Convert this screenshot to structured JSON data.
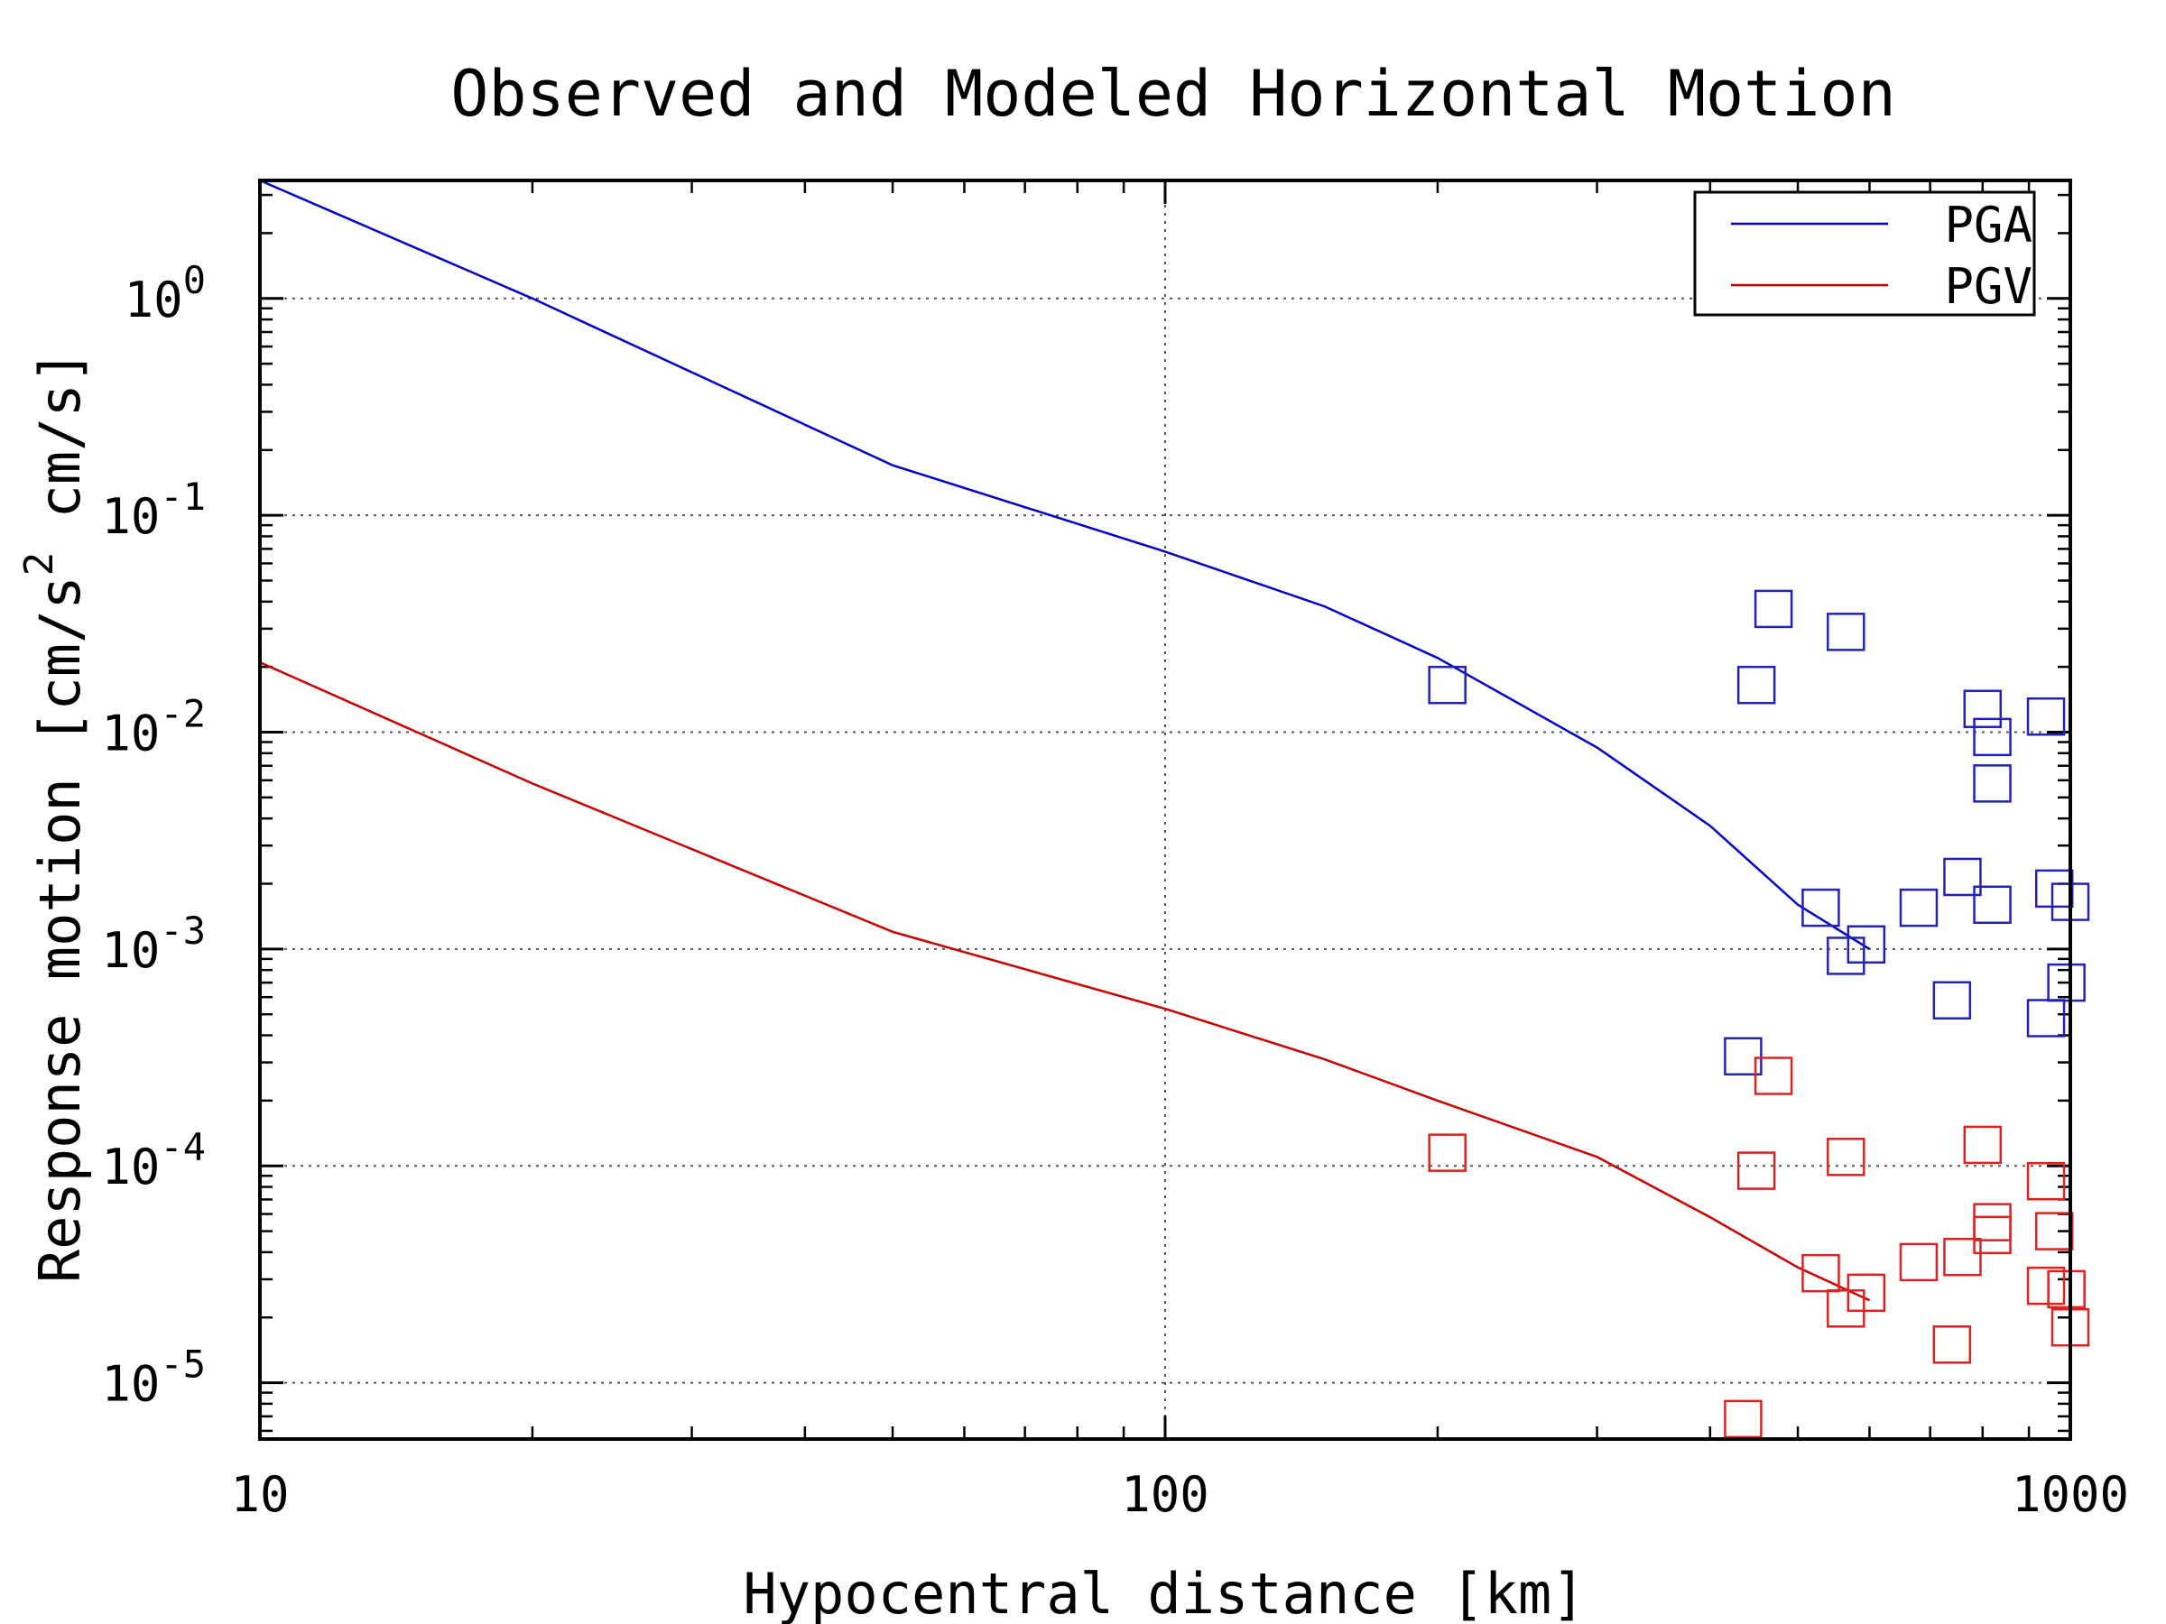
{
  "chart_data": {
    "type": "line",
    "title": "Observed and Modeled Horizontal Motion",
    "xlabel": "Hypocentral distance [km]",
    "ylabel": {
      "before": "Response motion  [cm/s",
      "sup": "2",
      "after": "  cm/s]"
    },
    "xscale": "log",
    "yscale": "log",
    "xlim": [
      10,
      1000
    ],
    "ylim": [
      5.5e-06,
      3.5
    ],
    "x_ticks": [
      {
        "value": 10,
        "label": "10"
      },
      {
        "value": 100,
        "label": "100"
      },
      {
        "value": 1000,
        "label": "1000"
      }
    ],
    "y_ticks": [
      {
        "value": 1,
        "base": "10",
        "exp": "0"
      },
      {
        "value": 0.1,
        "base": "10",
        "exp": "-1"
      },
      {
        "value": 0.01,
        "base": "10",
        "exp": "-2"
      },
      {
        "value": 0.001,
        "base": "10",
        "exp": "-3"
      },
      {
        "value": 0.0001,
        "base": "10",
        "exp": "-4"
      },
      {
        "value": 1e-05,
        "base": "10",
        "exp": "-5"
      }
    ],
    "grid": true,
    "legend_position": "top-right",
    "series": [
      {
        "name": "PGA",
        "kind": "line",
        "color": "#0000cc",
        "points": [
          [
            10,
            3.5
          ],
          [
            20,
            1.0
          ],
          [
            50,
            0.17
          ],
          [
            100,
            0.068
          ],
          [
            150,
            0.038
          ],
          [
            200,
            0.022
          ],
          [
            300,
            0.0085
          ],
          [
            400,
            0.0037
          ],
          [
            500,
            0.0016
          ],
          [
            600,
            0.001
          ]
        ]
      },
      {
        "name": "PGV",
        "kind": "line",
        "color": "#cc0000",
        "points": [
          [
            10,
            0.021
          ],
          [
            20,
            0.0058
          ],
          [
            50,
            0.0012
          ],
          [
            100,
            0.00053
          ],
          [
            150,
            0.00031
          ],
          [
            200,
            0.0002
          ],
          [
            300,
            0.00011
          ],
          [
            400,
            5.8e-05
          ],
          [
            500,
            3.4e-05
          ],
          [
            600,
            2.4e-05
          ]
        ]
      },
      {
        "kind": "markers",
        "marker": "square",
        "color": "#2222bb",
        "points": [
          [
            205,
            0.0165
          ],
          [
            450,
            0.0165
          ],
          [
            470,
            0.037
          ],
          [
            565,
            0.029
          ],
          [
            530,
            0.00155
          ],
          [
            565,
            0.00093
          ],
          [
            595,
            0.00105
          ],
          [
            680,
            0.00155
          ],
          [
            760,
            0.00215
          ],
          [
            800,
            0.0128
          ],
          [
            820,
            0.0016
          ],
          [
            820,
            0.0095
          ],
          [
            820,
            0.0058
          ],
          [
            940,
            0.0118
          ],
          [
            960,
            0.0019
          ],
          [
            1000,
            0.00165
          ],
          [
            990,
            0.0007
          ],
          [
            940,
            0.00048
          ],
          [
            740,
            0.00058
          ],
          [
            435,
            0.00032
          ]
        ]
      },
      {
        "kind": "markers",
        "marker": "square",
        "color": "#dd2222",
        "points": [
          [
            205,
            0.000115
          ],
          [
            450,
            9.5e-05
          ],
          [
            470,
            0.00026
          ],
          [
            565,
            0.00011
          ],
          [
            800,
            0.000125
          ],
          [
            940,
            8.5e-05
          ],
          [
            820,
            5.5e-05
          ],
          [
            820,
            4.8e-05
          ],
          [
            960,
            5e-05
          ],
          [
            530,
            3.2e-05
          ],
          [
            680,
            3.6e-05
          ],
          [
            760,
            3.8e-05
          ],
          [
            565,
            2.2e-05
          ],
          [
            595,
            2.6e-05
          ],
          [
            740,
            1.5e-05
          ],
          [
            940,
            2.8e-05
          ],
          [
            990,
            2.7e-05
          ],
          [
            1000,
            1.8e-05
          ],
          [
            435,
            6.8e-06
          ]
        ]
      }
    ]
  }
}
